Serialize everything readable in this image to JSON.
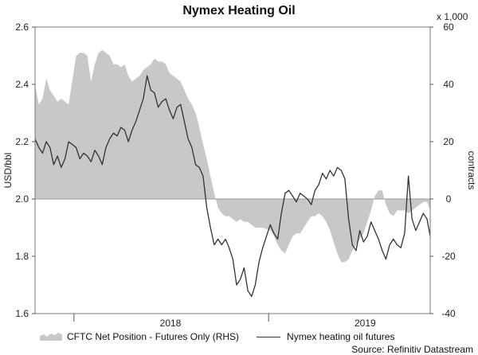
{
  "chart_data": {
    "type": "line",
    "title": "Nymex Heating Oil",
    "ylabel_left": "USD/bbl",
    "ylabel_right": "contracts",
    "right_axis_multiplier": "x 1,000",
    "ylim_left": [
      1.6,
      2.6
    ],
    "ylim_right": [
      -40,
      60
    ],
    "yticks_left": [
      "1.6",
      "1.8",
      "2.0",
      "2.2",
      "2.4",
      "2.6"
    ],
    "yticks_right": [
      "-40",
      "-20",
      "0",
      "20",
      "40",
      "60"
    ],
    "x_tick_labels": [
      {
        "label": "2018",
        "date": "2018-07-01"
      },
      {
        "label": "2019",
        "date": "2019-07-01"
      }
    ],
    "x_range": [
      "2017-10-20",
      "2019-10-31"
    ],
    "grid": false,
    "legend_position": "bottom",
    "series": [
      {
        "name": "CFTC Net Position - Futures Only (RHS)",
        "kind": "area",
        "axis": "right",
        "color": "#c8c8c8",
        "points": [
          [
            "2017-10-20",
            40
          ],
          [
            "2017-10-27",
            33
          ],
          [
            "2017-11-03",
            35
          ],
          [
            "2017-11-10",
            42
          ],
          [
            "2017-11-17",
            38
          ],
          [
            "2017-11-24",
            36
          ],
          [
            "2017-12-01",
            34
          ],
          [
            "2017-12-08",
            35
          ],
          [
            "2017-12-15",
            34
          ],
          [
            "2017-12-22",
            33
          ],
          [
            "2018-01-05",
            50
          ],
          [
            "2018-01-12",
            51
          ],
          [
            "2018-01-19",
            51
          ],
          [
            "2018-01-26",
            50
          ],
          [
            "2018-02-02",
            41
          ],
          [
            "2018-02-09",
            47
          ],
          [
            "2018-02-16",
            51
          ],
          [
            "2018-02-23",
            52
          ],
          [
            "2018-03-02",
            51
          ],
          [
            "2018-03-09",
            50
          ],
          [
            "2018-03-16",
            47
          ],
          [
            "2018-03-23",
            47
          ],
          [
            "2018-03-30",
            46
          ],
          [
            "2018-04-06",
            47
          ],
          [
            "2018-04-13",
            43
          ],
          [
            "2018-04-20",
            41
          ],
          [
            "2018-04-27",
            42
          ],
          [
            "2018-05-04",
            43
          ],
          [
            "2018-05-11",
            45
          ],
          [
            "2018-05-18",
            46
          ],
          [
            "2018-05-25",
            47
          ],
          [
            "2018-06-01",
            49
          ],
          [
            "2018-06-08",
            48
          ],
          [
            "2018-06-15",
            48
          ],
          [
            "2018-06-22",
            47
          ],
          [
            "2018-06-29",
            44
          ],
          [
            "2018-07-06",
            43
          ],
          [
            "2018-07-13",
            42
          ],
          [
            "2018-07-20",
            41
          ],
          [
            "2018-07-27",
            38
          ],
          [
            "2018-08-03",
            35
          ],
          [
            "2018-08-10",
            33
          ],
          [
            "2018-08-17",
            30
          ],
          [
            "2018-08-24",
            25
          ],
          [
            "2018-08-31",
            19
          ],
          [
            "2018-09-07",
            14
          ],
          [
            "2018-09-14",
            8
          ],
          [
            "2018-09-21",
            2
          ],
          [
            "2018-09-28",
            -3
          ],
          [
            "2018-10-05",
            -5
          ],
          [
            "2018-10-12",
            -6
          ],
          [
            "2018-10-19",
            -6
          ],
          [
            "2018-10-26",
            -7
          ],
          [
            "2018-11-02",
            -8
          ],
          [
            "2018-11-09",
            -7
          ],
          [
            "2018-11-16",
            -8
          ],
          [
            "2018-11-23",
            -8
          ],
          [
            "2018-11-30",
            -9
          ],
          [
            "2018-12-07",
            -10
          ],
          [
            "2018-12-14",
            -10
          ],
          [
            "2018-12-21",
            -10
          ],
          [
            "2019-01-04",
            -11
          ],
          [
            "2019-01-11",
            -13
          ],
          [
            "2019-01-18",
            -16
          ],
          [
            "2019-01-25",
            -18
          ],
          [
            "2019-02-01",
            -19
          ],
          [
            "2019-02-08",
            -16
          ],
          [
            "2019-02-15",
            -13
          ],
          [
            "2019-02-22",
            -12
          ],
          [
            "2019-03-01",
            -12
          ],
          [
            "2019-03-08",
            -10
          ],
          [
            "2019-03-15",
            -8
          ],
          [
            "2019-03-22",
            -6
          ],
          [
            "2019-03-29",
            -6
          ],
          [
            "2019-04-05",
            -5
          ],
          [
            "2019-04-12",
            -6
          ],
          [
            "2019-04-19",
            -8
          ],
          [
            "2019-04-26",
            -11
          ],
          [
            "2019-05-03",
            -15
          ],
          [
            "2019-05-10",
            -19
          ],
          [
            "2019-05-17",
            -22
          ],
          [
            "2019-05-24",
            -22
          ],
          [
            "2019-05-31",
            -21
          ],
          [
            "2019-06-07",
            -18
          ],
          [
            "2019-06-14",
            -16
          ],
          [
            "2019-06-21",
            -14
          ],
          [
            "2019-06-28",
            -12
          ],
          [
            "2019-07-05",
            -8
          ],
          [
            "2019-07-12",
            -4
          ],
          [
            "2019-07-19",
            1
          ],
          [
            "2019-07-26",
            3
          ],
          [
            "2019-08-02",
            3
          ],
          [
            "2019-08-09",
            -2
          ],
          [
            "2019-08-16",
            -5
          ],
          [
            "2019-08-23",
            -6
          ],
          [
            "2019-08-30",
            -4
          ],
          [
            "2019-09-06",
            -4
          ],
          [
            "2019-09-13",
            -4
          ],
          [
            "2019-09-20",
            -5
          ],
          [
            "2019-09-27",
            -4
          ],
          [
            "2019-10-04",
            -3
          ],
          [
            "2019-10-11",
            -2
          ],
          [
            "2019-10-18",
            -1
          ],
          [
            "2019-10-25",
            -1
          ],
          [
            "2019-10-31",
            -4
          ]
        ]
      },
      {
        "name": "Nymex heating oil futures",
        "kind": "line",
        "axis": "left",
        "color": "#333333",
        "points": [
          [
            "2017-10-20",
            2.21
          ],
          [
            "2017-10-27",
            2.18
          ],
          [
            "2017-11-03",
            2.16
          ],
          [
            "2017-11-10",
            2.2
          ],
          [
            "2017-11-17",
            2.18
          ],
          [
            "2017-11-24",
            2.12
          ],
          [
            "2017-12-01",
            2.15
          ],
          [
            "2017-12-08",
            2.11
          ],
          [
            "2017-12-15",
            2.14
          ],
          [
            "2017-12-22",
            2.2
          ],
          [
            "2018-01-05",
            2.18
          ],
          [
            "2018-01-12",
            2.14
          ],
          [
            "2018-01-19",
            2.16
          ],
          [
            "2018-01-26",
            2.15
          ],
          [
            "2018-02-02",
            2.13
          ],
          [
            "2018-02-09",
            2.17
          ],
          [
            "2018-02-16",
            2.15
          ],
          [
            "2018-02-23",
            2.12
          ],
          [
            "2018-03-02",
            2.18
          ],
          [
            "2018-03-09",
            2.21
          ],
          [
            "2018-03-16",
            2.23
          ],
          [
            "2018-03-23",
            2.22
          ],
          [
            "2018-03-30",
            2.25
          ],
          [
            "2018-04-06",
            2.24
          ],
          [
            "2018-04-13",
            2.2
          ],
          [
            "2018-04-20",
            2.24
          ],
          [
            "2018-04-27",
            2.27
          ],
          [
            "2018-05-04",
            2.31
          ],
          [
            "2018-05-11",
            2.35
          ],
          [
            "2018-05-18",
            2.43
          ],
          [
            "2018-05-25",
            2.38
          ],
          [
            "2018-06-01",
            2.37
          ],
          [
            "2018-06-08",
            2.32
          ],
          [
            "2018-06-15",
            2.34
          ],
          [
            "2018-06-22",
            2.35
          ],
          [
            "2018-06-29",
            2.31
          ],
          [
            "2018-07-06",
            2.28
          ],
          [
            "2018-07-13",
            2.32
          ],
          [
            "2018-07-20",
            2.33
          ],
          [
            "2018-07-27",
            2.27
          ],
          [
            "2018-08-03",
            2.21
          ],
          [
            "2018-08-10",
            2.18
          ],
          [
            "2018-08-17",
            2.12
          ],
          [
            "2018-08-24",
            2.11
          ],
          [
            "2018-08-31",
            2.08
          ],
          [
            "2018-09-07",
            1.97
          ],
          [
            "2018-09-14",
            1.9
          ],
          [
            "2018-09-21",
            1.84
          ],
          [
            "2018-09-28",
            1.86
          ],
          [
            "2018-10-05",
            1.84
          ],
          [
            "2018-10-12",
            1.86
          ],
          [
            "2018-10-19",
            1.83
          ],
          [
            "2018-10-26",
            1.79
          ],
          [
            "2018-11-02",
            1.7
          ],
          [
            "2018-11-09",
            1.72
          ],
          [
            "2018-11-16",
            1.76
          ],
          [
            "2018-11-23",
            1.68
          ],
          [
            "2018-11-30",
            1.66
          ],
          [
            "2018-12-07",
            1.7
          ],
          [
            "2018-12-14",
            1.78
          ],
          [
            "2018-12-21",
            1.83
          ],
          [
            "2019-01-04",
            1.91
          ],
          [
            "2019-01-11",
            1.88
          ],
          [
            "2019-01-18",
            1.86
          ],
          [
            "2019-01-25",
            1.95
          ],
          [
            "2019-02-01",
            2.02
          ],
          [
            "2019-02-08",
            2.03
          ],
          [
            "2019-02-15",
            2.01
          ],
          [
            "2019-02-22",
            1.99
          ],
          [
            "2019-03-01",
            2.02
          ],
          [
            "2019-03-08",
            2.01
          ],
          [
            "2019-03-15",
            2.0
          ],
          [
            "2019-03-22",
            1.98
          ],
          [
            "2019-03-29",
            2.03
          ],
          [
            "2019-04-05",
            2.05
          ],
          [
            "2019-04-12",
            2.09
          ],
          [
            "2019-04-19",
            2.07
          ],
          [
            "2019-04-26",
            2.1
          ],
          [
            "2019-05-03",
            2.08
          ],
          [
            "2019-05-10",
            2.11
          ],
          [
            "2019-05-17",
            2.1
          ],
          [
            "2019-05-24",
            2.07
          ],
          [
            "2019-05-31",
            1.93
          ],
          [
            "2019-06-07",
            1.84
          ],
          [
            "2019-06-14",
            1.82
          ],
          [
            "2019-06-21",
            1.89
          ],
          [
            "2019-06-28",
            1.85
          ],
          [
            "2019-07-05",
            1.87
          ],
          [
            "2019-07-12",
            1.92
          ],
          [
            "2019-07-19",
            1.89
          ],
          [
            "2019-07-26",
            1.86
          ],
          [
            "2019-08-02",
            1.82
          ],
          [
            "2019-08-09",
            1.79
          ],
          [
            "2019-08-16",
            1.84
          ],
          [
            "2019-08-23",
            1.86
          ],
          [
            "2019-08-30",
            1.84
          ],
          [
            "2019-09-06",
            1.83
          ],
          [
            "2019-09-13",
            1.88
          ],
          [
            "2019-09-20",
            2.08
          ],
          [
            "2019-09-27",
            1.93
          ],
          [
            "2019-10-04",
            1.89
          ],
          [
            "2019-10-11",
            1.92
          ],
          [
            "2019-10-18",
            1.95
          ],
          [
            "2019-10-25",
            1.93
          ],
          [
            "2019-10-31",
            1.87
          ]
        ]
      }
    ],
    "source": "Source: Refinitiv Datastream"
  }
}
